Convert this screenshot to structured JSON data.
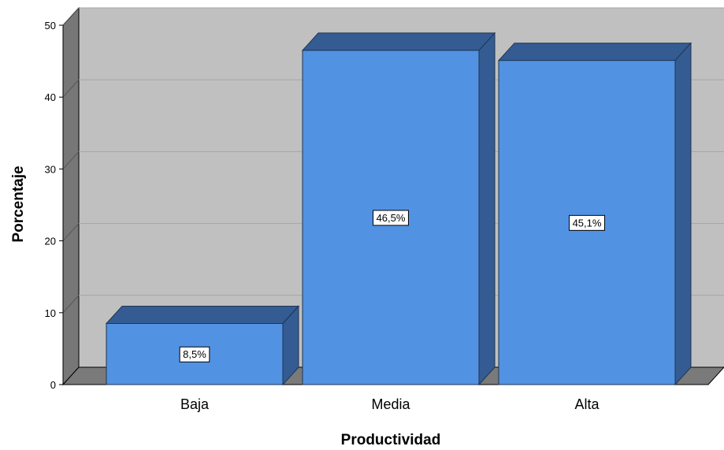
{
  "chart_data": {
    "type": "bar",
    "categories": [
      "Baja",
      "Media",
      "Alta"
    ],
    "values": [
      8.5,
      46.5,
      45.1
    ],
    "data_labels": [
      "8,5%",
      "46,5%",
      "45,1%"
    ],
    "title": "",
    "xlabel": "Productividad",
    "ylabel": "Porcentaje",
    "ylim": [
      0,
      50
    ],
    "yticks": [
      "0",
      "10",
      "20",
      "30",
      "40",
      "50"
    ],
    "grid": true,
    "style": "3d",
    "colors": {
      "bar_front": "#5292e3",
      "bar_side": "#345c93",
      "bar_top": "#345c93",
      "plot_back": "#c0c0c0",
      "wall": "#777777",
      "floor": "#7a7a7a",
      "gridline": "#a6a6a6",
      "label_box": "#ffffff"
    }
  }
}
